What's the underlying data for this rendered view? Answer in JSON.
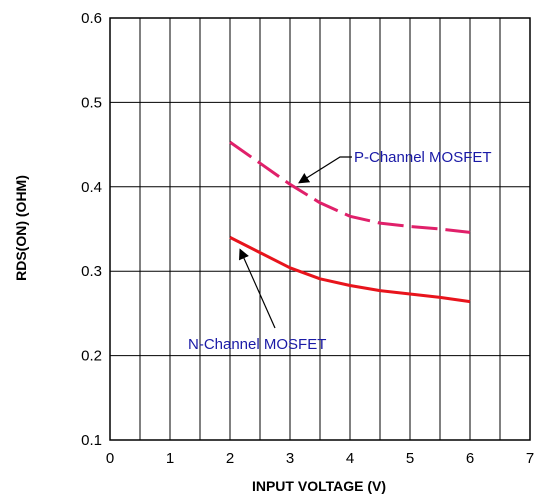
{
  "chart_data": {
    "type": "line",
    "xlabel": "INPUT VOLTAGE (V)",
    "ylabel": "RDS(ON) (OHM)",
    "xlim": [
      0,
      7
    ],
    "ylim": [
      0.1,
      0.6
    ],
    "x_ticks": [
      "0",
      "1",
      "2",
      "3",
      "4",
      "5",
      "6",
      "7"
    ],
    "y_ticks": [
      "0.1",
      "0.2",
      "0.3",
      "0.4",
      "0.5",
      "0.6"
    ],
    "grid": true,
    "series": [
      {
        "name": "P-Channel MOSFET",
        "color": "#e0206a",
        "line_style": "dashed",
        "x": [
          2.0,
          2.5,
          3.0,
          3.5,
          4.0,
          4.5,
          5.0,
          5.5,
          6.0
        ],
        "y": [
          0.453,
          0.428,
          0.403,
          0.381,
          0.365,
          0.357,
          0.353,
          0.35,
          0.346
        ]
      },
      {
        "name": "N-Channel MOSFET",
        "color": "#e8141c",
        "line_style": "solid",
        "x": [
          2.0,
          2.5,
          3.0,
          3.5,
          4.0,
          4.5,
          5.0,
          5.5,
          6.0
        ],
        "y": [
          0.34,
          0.322,
          0.304,
          0.291,
          0.283,
          0.277,
          0.273,
          0.269,
          0.264
        ]
      }
    ],
    "annotations": [
      {
        "text": "P-Channel MOSFET",
        "series_index": 0,
        "arrow_to_x": 3.15,
        "arrow_to_y": 0.4
      },
      {
        "text": "N-Channel MOSFET",
        "series_index": 1,
        "arrow_to_x": 2.1,
        "arrow_to_y": 0.333
      }
    ]
  }
}
